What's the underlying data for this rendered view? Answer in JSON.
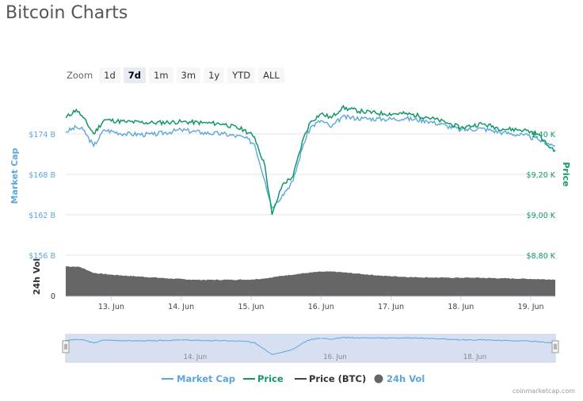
{
  "page": {
    "title": "Bitcoin Charts",
    "credit": "coinmarketcap.com"
  },
  "zoom": {
    "label": "Zoom",
    "buttons": [
      {
        "label": "1d",
        "active": false
      },
      {
        "label": "7d",
        "active": true
      },
      {
        "label": "1m",
        "active": false
      },
      {
        "label": "3m",
        "active": false
      },
      {
        "label": "1y",
        "active": false
      },
      {
        "label": "YTD",
        "active": false
      },
      {
        "label": "ALL",
        "active": false
      }
    ]
  },
  "colors": {
    "market_cap": "#5ba7dc",
    "price": "#119963",
    "price_btc": "#434348",
    "volume": "#666666",
    "navigator_fill": "#d3ddf0"
  },
  "chart_data": {
    "type": "line",
    "x_ticks": [
      "13. Jun",
      "14. Jun",
      "15. Jun",
      "16. Jun",
      "17. Jun",
      "18. Jun",
      "19. Jun"
    ],
    "x_range_days": [
      12.35,
      19.35
    ],
    "left_axis": {
      "label": "Market Cap",
      "ticks": [
        "$174 B",
        "$168 B",
        "$162 B",
        "$156 B"
      ],
      "tick_values": [
        174,
        168,
        162,
        156
      ]
    },
    "right_axis": {
      "label": "Price",
      "ticks": [
        "9,40 K",
        "$9,20 K",
        "$9,00 K",
        "$8,80 K"
      ],
      "tick_values": [
        9400,
        9200,
        9000,
        8800
      ]
    },
    "volume_axis": {
      "label": "24h Vol",
      "ticks": [
        "0"
      ]
    },
    "series": [
      {
        "name": "Market Cap",
        "unit": "B USD",
        "x": [
          12.35,
          12.5,
          12.6,
          12.75,
          12.9,
          13.2,
          13.6,
          14.0,
          14.3,
          14.6,
          14.9,
          15.05,
          15.2,
          15.3,
          15.45,
          15.6,
          15.75,
          15.85,
          16.0,
          16.15,
          16.3,
          16.6,
          16.9,
          17.2,
          17.5,
          17.8,
          18.0,
          18.3,
          18.6,
          18.9,
          19.1,
          19.25,
          19.35
        ],
        "values": [
          174.3,
          175.0,
          174.6,
          172.2,
          174.6,
          174.0,
          173.9,
          174.6,
          174.2,
          174.0,
          173.5,
          172.5,
          167.0,
          163.0,
          165.0,
          167.0,
          172.5,
          175.0,
          176.0,
          175.0,
          176.5,
          176.3,
          176.2,
          176.3,
          176.0,
          175.2,
          174.6,
          174.8,
          174.2,
          173.8,
          173.2,
          172.6,
          172.2
        ]
      },
      {
        "name": "Price",
        "unit": "USD",
        "x": [
          12.35,
          12.5,
          12.6,
          12.75,
          12.9,
          13.2,
          13.6,
          14.0,
          14.3,
          14.6,
          14.9,
          15.05,
          15.2,
          15.3,
          15.45,
          15.6,
          15.75,
          15.85,
          16.0,
          16.15,
          16.3,
          16.6,
          16.9,
          17.2,
          17.5,
          17.8,
          18.0,
          18.3,
          18.6,
          18.9,
          19.1,
          19.25,
          19.35
        ],
        "values": [
          9480,
          9520,
          9480,
          9400,
          9470,
          9460,
          9455,
          9460,
          9455,
          9450,
          9420,
          9385,
          9240,
          9000,
          9150,
          9190,
          9380,
          9460,
          9500,
          9480,
          9530,
          9510,
          9500,
          9500,
          9485,
          9455,
          9430,
          9450,
          9425,
          9420,
          9400,
          9340,
          9320
        ]
      },
      {
        "name": "Price (BTC)",
        "values": []
      },
      {
        "name": "24h Vol",
        "type": "area",
        "x": [
          12.35,
          12.55,
          12.75,
          13.0,
          13.4,
          13.8,
          14.2,
          14.6,
          15.0,
          15.2,
          15.5,
          15.8,
          16.0,
          16.2,
          16.5,
          16.9,
          17.3,
          17.8,
          18.2,
          18.6,
          19.0,
          19.35
        ],
        "values": [
          1.0,
          0.98,
          0.78,
          0.72,
          0.66,
          0.6,
          0.55,
          0.55,
          0.56,
          0.6,
          0.7,
          0.78,
          0.82,
          0.82,
          0.76,
          0.68,
          0.64,
          0.62,
          0.62,
          0.6,
          0.58,
          0.56
        ]
      }
    ],
    "navigator": {
      "x_ticks": [
        "14. Jun",
        "16. Jun",
        "18. Jun"
      ]
    },
    "legend": {
      "placement": "bottom-center",
      "items": [
        "Market Cap",
        "Price",
        "Price (BTC)",
        "24h Vol"
      ]
    }
  }
}
